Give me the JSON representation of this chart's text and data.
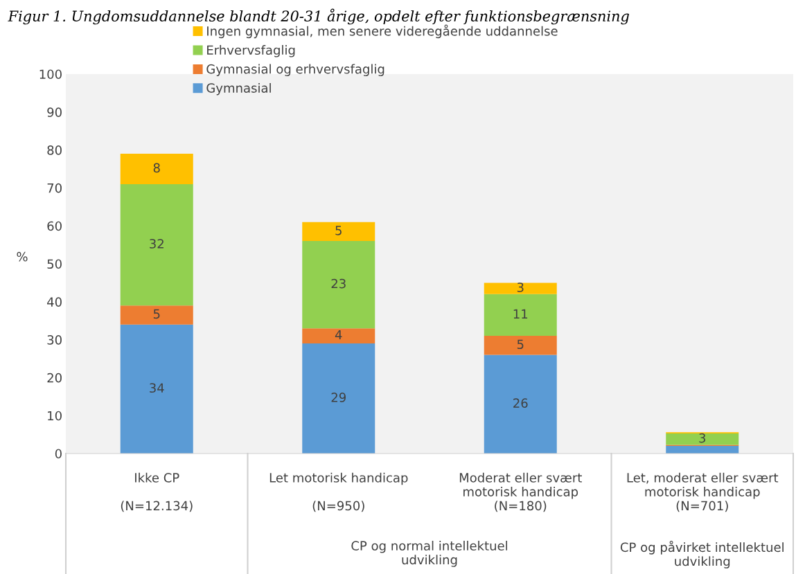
{
  "chart_data": {
    "type": "bar",
    "stacked": true,
    "title": "Figur 1. Ungdomsuddannelse blandt 20-31 årige, opdelt efter funktionsbegrænsning",
    "ylabel": "%",
    "categories": [
      "Ikke CP\n\n(N=12.134)",
      "Let motorisk handicap\n\n(N=950)",
      "Moderat eller svært\nmotorisk handicap\n(N=180)",
      "Let, moderat eller svært\nmotorisk handicap\n(N=701)"
    ],
    "series": [
      {
        "name": "Gymnasial",
        "color": "#5b9bd5",
        "values": [
          34,
          29,
          26,
          2
        ],
        "value_labels": [
          "34",
          "29",
          "26",
          null
        ]
      },
      {
        "name": "Gymnasial og erhvervsfaglig",
        "color": "#ed7d31",
        "values": [
          5,
          4,
          5,
          0.3
        ],
        "value_labels": [
          "5",
          "4",
          "5",
          null
        ]
      },
      {
        "name": "Erhvervsfaglig",
        "color": "#92d050",
        "values": [
          32,
          23,
          11,
          3
        ],
        "value_labels": [
          "32",
          "23",
          "11",
          "3"
        ]
      },
      {
        "name": "Ingen gymnasial, men senere videregående uddannelse",
        "color": "#ffc000",
        "values": [
          8,
          5,
          3,
          0.3
        ],
        "value_labels": [
          "8",
          "5",
          "3",
          null
        ]
      }
    ],
    "ylim": [
      0,
      100
    ],
    "yticks": [
      0,
      10,
      20,
      30,
      40,
      50,
      60,
      70,
      80,
      90,
      100
    ],
    "grid": false,
    "legend": "top left",
    "annotations": [
      "CP og normal intellektuel\nudvikling",
      "CP og påvirket intellektuel\nudvikling"
    ]
  }
}
